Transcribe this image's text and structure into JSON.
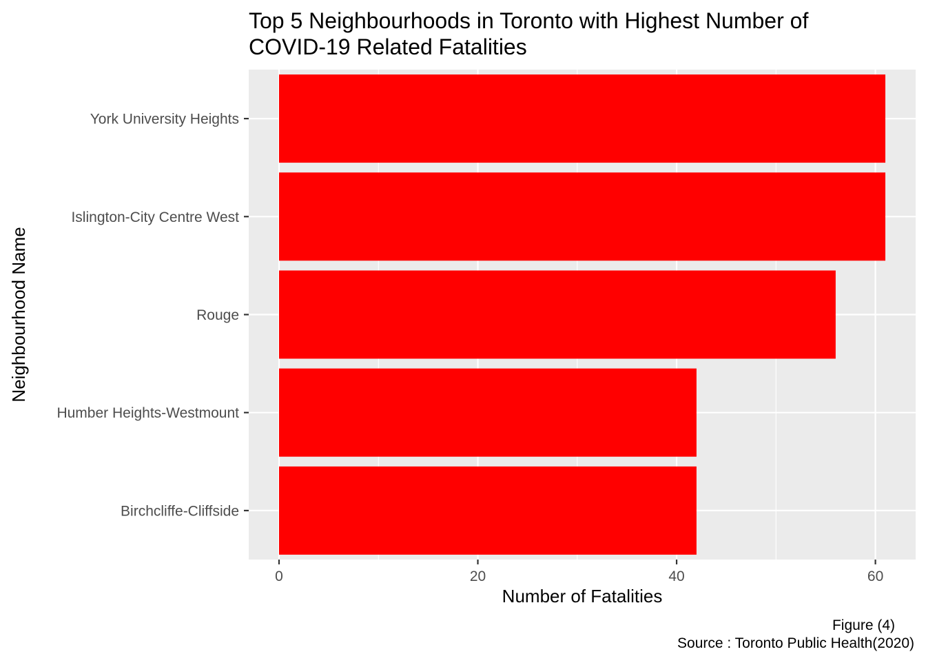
{
  "chart_data": {
    "type": "bar",
    "orientation": "horizontal",
    "title": "Top 5 Neighbourhoods in Toronto with Highest Number of COVID-19 Related Fatalities",
    "title_lines": [
      "Top 5 Neighbourhoods in Toronto with Highest Number of",
      "COVID-19 Related Fatalities"
    ],
    "categories": [
      "York University Heights",
      "Islington-City Centre West",
      "Rouge",
      "Humber Heights-Westmount",
      "Birchcliffe-Cliffside"
    ],
    "values": [
      61,
      61,
      56,
      42,
      42
    ],
    "xlabel": "Number of Fatalities",
    "ylabel": "Neighbourhood Name",
    "xlim": [
      -3.05,
      64.05
    ],
    "xticks": [
      0,
      20,
      40,
      60
    ],
    "x_minor_ticks": [
      10,
      30,
      50
    ],
    "grid": true,
    "bar_color": "#ff0000",
    "panel_background": "#ebebeb",
    "grid_color": "#ffffff",
    "legend": "none",
    "caption_lines": [
      "Figure (4)",
      "Source : Toronto Public Health(2020)"
    ]
  }
}
